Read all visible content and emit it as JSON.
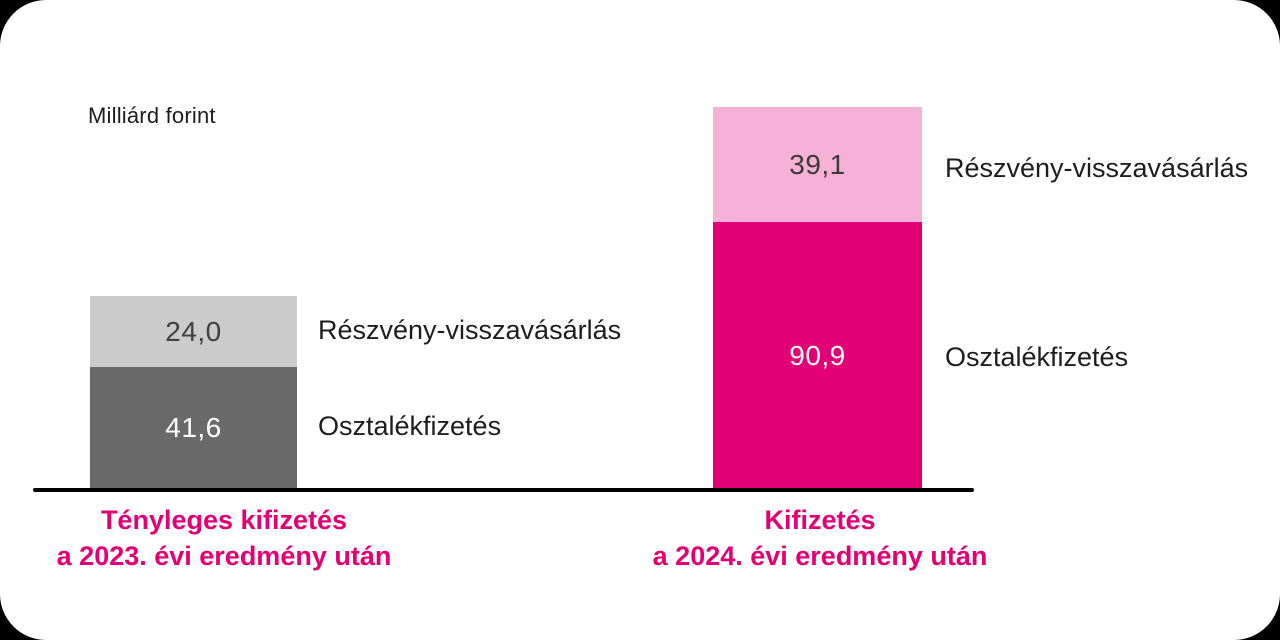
{
  "chart_data": {
    "type": "bar",
    "stacked": true,
    "title": "",
    "unit_label": "Milliárd forint",
    "categories": [
      "Tényleges kifizetés a 2023. évi eredmény után",
      "Kifizetés a 2024. évi eredmény után"
    ],
    "series": [
      {
        "name": "Osztalékfizetés",
        "values": [
          41.6,
          90.9
        ],
        "segment_colors": [
          "#6A6A6A",
          "#E20074"
        ],
        "value_text_colors": [
          "#FFFFFF",
          "#FFFFFF"
        ]
      },
      {
        "name": "Részvény-visszavásárlás",
        "values": [
          24.0,
          39.1
        ],
        "segment_colors": [
          "#CBCBCB",
          "#F8B1D6"
        ],
        "value_text_colors": [
          "#404040",
          "#3A3A3A"
        ]
      }
    ],
    "value_labels": {
      "dividend": [
        "41,6",
        "90,9"
      ],
      "buyback": [
        "24,0",
        "39,1"
      ]
    },
    "legend_position": "right-of-each-bar",
    "grid": false,
    "baseline_color": "#000000",
    "category_label_color": "#E20074"
  },
  "bars": {
    "left": {
      "buyback_value": "24,0",
      "dividend_value": "41,6",
      "buyback_label": "Részvény-visszavásárlás",
      "dividend_label": "Osztalékfizetés",
      "caption_line1": "Tényleges kifizetés",
      "caption_line2": "a 2023. évi eredmény után"
    },
    "right": {
      "buyback_value": "39,1",
      "dividend_value": "90,9",
      "buyback_label": "Részvény-visszavásárlás",
      "dividend_label": "Osztalékfizetés",
      "caption_line1": "Kifizetés",
      "caption_line2": "a 2024. évi eredmény után"
    }
  },
  "colors": {
    "brand_magenta": "#E20074",
    "light_pink": "#F8B1D6",
    "dark_gray": "#6A6A6A",
    "light_gray": "#CBCBCB",
    "text_dark": "#1D1D1D",
    "background": "#FFFFFF"
  }
}
